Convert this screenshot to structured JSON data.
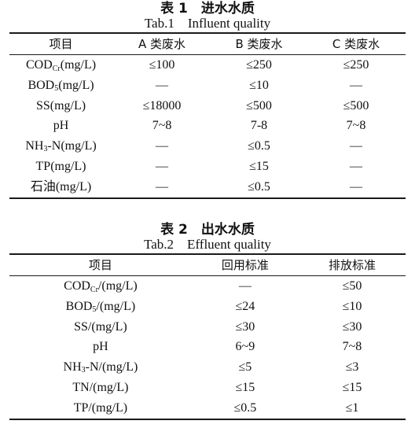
{
  "table1": {
    "title_cn": "表 1　进水水质",
    "title_en": "Tab.1　Influent quality",
    "headers": [
      "项目",
      "A 类废水",
      "B 类废水",
      "C 类废水"
    ],
    "rows": [
      {
        "label_pre": "COD",
        "label_sub": "Cr",
        "label_post": "(mg/L)",
        "cells": [
          "≤100",
          "≤250",
          "≤250"
        ]
      },
      {
        "label_pre": "BOD",
        "label_sub": "5",
        "label_post": "(mg/L)",
        "cells": [
          "—",
          "≤10",
          "—"
        ]
      },
      {
        "label_pre": "SS(mg/L)",
        "label_sub": "",
        "label_post": "",
        "cells": [
          "≤18000",
          "≤500",
          "≤500"
        ]
      },
      {
        "label_pre": "pH",
        "label_sub": "",
        "label_post": "",
        "cells": [
          "7~8",
          "7-8",
          "7~8"
        ]
      },
      {
        "label_pre": "NH",
        "label_sub": "3",
        "label_post": "-N(mg/L)",
        "cells": [
          "—",
          "≤0.5",
          "—"
        ]
      },
      {
        "label_pre": "TP(mg/L)",
        "label_sub": "",
        "label_post": "",
        "cells": [
          "—",
          "≤15",
          "—"
        ]
      },
      {
        "label_pre": "石油(mg/L)",
        "label_sub": "",
        "label_post": "",
        "cells": [
          "—",
          "≤0.5",
          "—"
        ]
      }
    ]
  },
  "table2": {
    "title_cn": "表 2　出水水质",
    "title_en": "Tab.2　Effluent quality",
    "headers": [
      "项目",
      "回用标准",
      "排放标准"
    ],
    "rows": [
      {
        "label_pre": "COD",
        "label_sub": "Cr",
        "label_post": "/(mg/L)",
        "cells": [
          "—",
          "≤50"
        ]
      },
      {
        "label_pre": "BOD",
        "label_sub": "5",
        "label_post": "/(mg/L)",
        "cells": [
          "≤24",
          "≤10"
        ]
      },
      {
        "label_pre": "SS/(mg/L)",
        "label_sub": "",
        "label_post": "",
        "cells": [
          "≤30",
          "≤30"
        ]
      },
      {
        "label_pre": "pH",
        "label_sub": "",
        "label_post": "",
        "cells": [
          "6~9",
          "7~8"
        ]
      },
      {
        "label_pre": "NH",
        "label_sub": "3",
        "label_post": "-N/(mg/L)",
        "cells": [
          "≤5",
          "≤3"
        ]
      },
      {
        "label_pre": "TN/(mg/L)",
        "label_sub": "",
        "label_post": "",
        "cells": [
          "≤15",
          "≤15"
        ]
      },
      {
        "label_pre": "TP/(mg/L)",
        "label_sub": "",
        "label_post": "",
        "cells": [
          "≤0.5",
          "≤1"
        ]
      }
    ]
  }
}
